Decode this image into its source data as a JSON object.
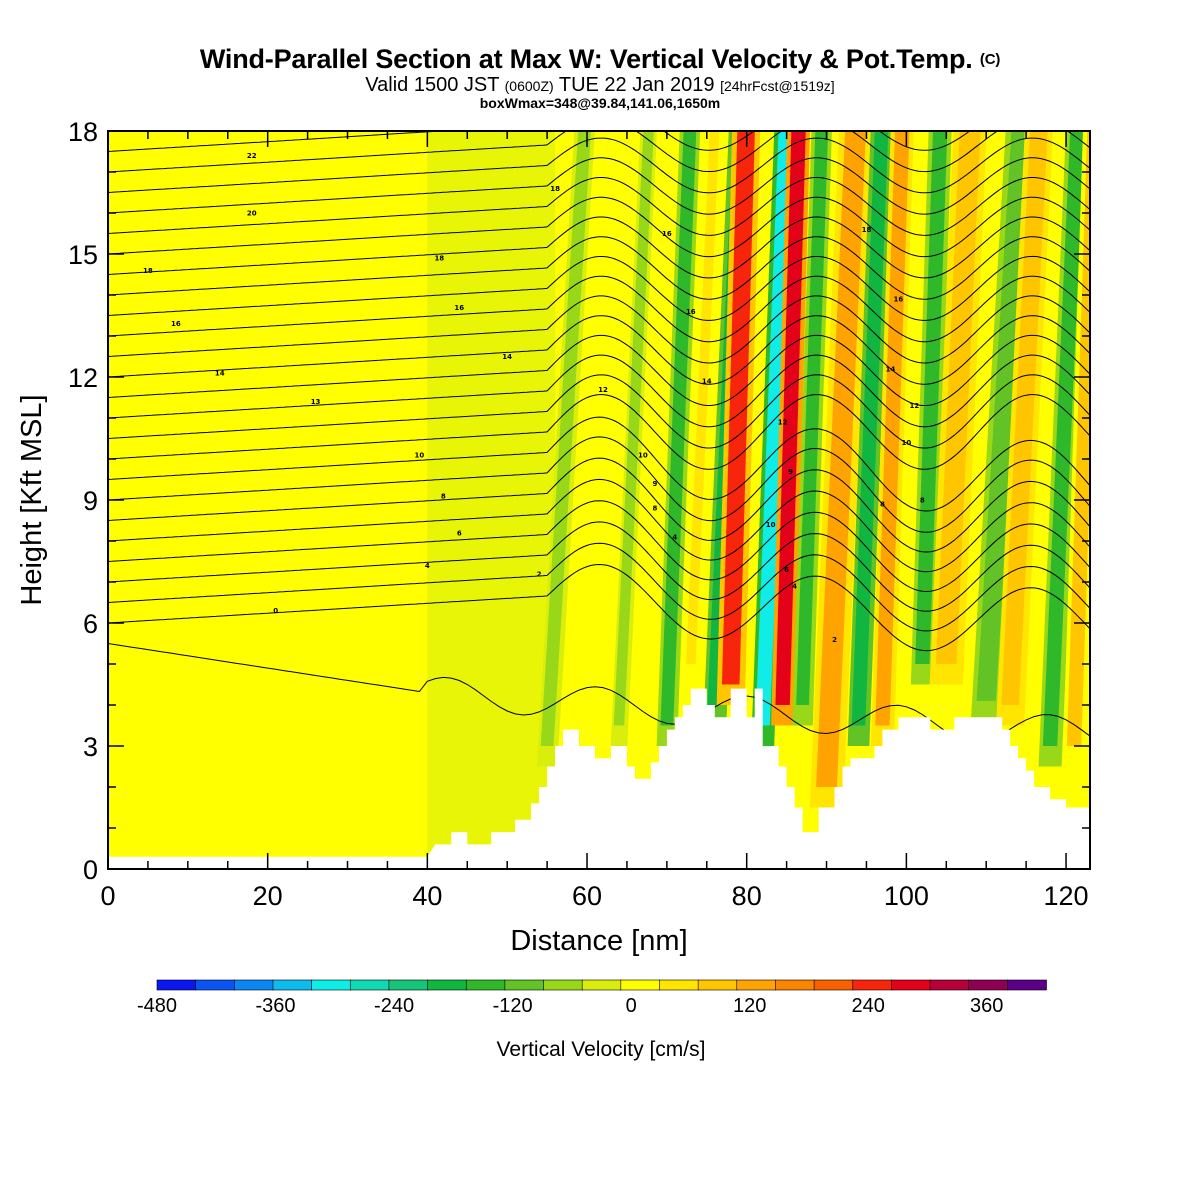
{
  "title": {
    "main": "Wind-Parallel Section at Max W: Vertical Velocity & Pot.Temp.",
    "main_suffix": "(C)",
    "valid_prefix": "Valid 1500 JST",
    "valid_zone": "(0600Z)",
    "valid_date": "TUE 22 Jan 2019",
    "valid_fcst": "[24hrFcst@1519z]",
    "box": "boxWmax=348@39.84,141.06,1650m"
  },
  "chart_data": {
    "type": "heatmap",
    "xlabel": "Distance [nm]",
    "ylabel": "Height [Kft MSL]",
    "xlim": [
      0,
      123
    ],
    "ylim": [
      0,
      18
    ],
    "x_ticks": [
      0,
      20,
      40,
      60,
      80,
      100,
      120
    ],
    "y_ticks": [
      0,
      3,
      6,
      9,
      12,
      15,
      18
    ],
    "colorbar": {
      "title": "Vertical Velocity [cm/s]",
      "min": -480,
      "max": 420,
      "step": 40,
      "tick_values": [
        -480,
        -360,
        -240,
        -120,
        0,
        120,
        240,
        360
      ],
      "colors": [
        "#0a17ee",
        "#0b54f4",
        "#0b86f2",
        "#0dbbee",
        "#10ede6",
        "#12d9b4",
        "#16c579",
        "#10b640",
        "#30b82b",
        "#62c226",
        "#98d818",
        "#d9ee0c",
        "#ffff00",
        "#ffe500",
        "#ffc600",
        "#ffa300",
        "#fb8500",
        "#f76100",
        "#f6250c",
        "#e4021b",
        "#b70039",
        "#8f0055",
        "#5b0086"
      ]
    },
    "terrain_kft": [
      [
        0,
        0.3
      ],
      [
        40,
        0.3
      ],
      [
        41,
        0.6
      ],
      [
        43,
        0.6
      ],
      [
        43,
        0.9
      ],
      [
        45,
        0.9
      ],
      [
        45,
        0.6
      ],
      [
        48,
        0.6
      ],
      [
        48,
        0.9
      ],
      [
        51,
        0.9
      ],
      [
        51,
        1.2
      ],
      [
        53,
        1.2
      ],
      [
        53,
        1.6
      ],
      [
        54,
        1.6
      ],
      [
        54,
        2.0
      ],
      [
        55,
        2.0
      ],
      [
        55,
        2.5
      ],
      [
        56,
        2.5
      ],
      [
        56,
        3.0
      ],
      [
        57,
        3.0
      ],
      [
        57,
        3.4
      ],
      [
        59,
        3.4
      ],
      [
        59,
        3.0
      ],
      [
        61,
        3.0
      ],
      [
        61,
        2.7
      ],
      [
        63,
        2.7
      ],
      [
        63,
        3.0
      ],
      [
        65,
        3.0
      ],
      [
        65,
        2.5
      ],
      [
        66,
        2.5
      ],
      [
        66,
        2.2
      ],
      [
        68,
        2.2
      ],
      [
        68,
        2.6
      ],
      [
        69,
        2.6
      ],
      [
        69,
        3.0
      ],
      [
        70,
        3.0
      ],
      [
        70,
        3.4
      ],
      [
        71,
        3.4
      ],
      [
        71,
        3.7
      ],
      [
        72,
        3.7
      ],
      [
        72,
        4.0
      ],
      [
        73,
        4.0
      ],
      [
        73,
        4.4
      ],
      [
        75,
        4.4
      ],
      [
        75,
        4.0
      ],
      [
        76,
        4.0
      ],
      [
        76,
        3.7
      ],
      [
        78,
        3.7
      ],
      [
        78,
        4.4
      ],
      [
        80,
        4.4
      ],
      [
        80,
        3.7
      ],
      [
        81,
        3.7
      ],
      [
        81,
        4.4
      ],
      [
        82,
        4.4
      ],
      [
        82,
        3.0
      ],
      [
        84,
        3.0
      ],
      [
        84,
        2.5
      ],
      [
        85,
        2.5
      ],
      [
        85,
        2.0
      ],
      [
        86,
        2.0
      ],
      [
        86,
        1.5
      ],
      [
        87,
        1.5
      ],
      [
        87,
        0.9
      ],
      [
        89,
        0.9
      ],
      [
        89,
        1.5
      ],
      [
        91,
        1.5
      ],
      [
        91,
        2.0
      ],
      [
        92,
        2.0
      ],
      [
        92,
        2.5
      ],
      [
        93,
        2.5
      ],
      [
        93,
        2.7
      ],
      [
        96,
        2.7
      ],
      [
        96,
        3.0
      ],
      [
        97,
        3.0
      ],
      [
        97,
        3.4
      ],
      [
        99,
        3.4
      ],
      [
        99,
        3.7
      ],
      [
        103,
        3.7
      ],
      [
        103,
        3.4
      ],
      [
        106,
        3.4
      ],
      [
        106,
        3.7
      ],
      [
        112,
        3.7
      ],
      [
        112,
        3.4
      ],
      [
        113,
        3.4
      ],
      [
        113,
        3.0
      ],
      [
        114,
        3.0
      ],
      [
        114,
        2.7
      ],
      [
        115,
        2.7
      ],
      [
        115,
        2.4
      ],
      [
        116,
        2.4
      ],
      [
        116,
        2.0
      ],
      [
        118,
        2.0
      ],
      [
        118,
        1.7
      ],
      [
        120,
        1.7
      ],
      [
        120,
        1.5
      ],
      [
        123,
        1.5
      ]
    ],
    "velocity_bands": [
      {
        "x": 55,
        "tilt": 0.55,
        "width": 1.6,
        "value": -60,
        "zmin": 2.5,
        "zmax": 18
      },
      {
        "x": 64,
        "tilt": 0.45,
        "width": 1.3,
        "value": -60,
        "zmin": 3.0,
        "zmax": 18
      },
      {
        "x": 70,
        "tilt": 0.35,
        "width": 1.6,
        "value": -140,
        "zmin": 3.0,
        "zmax": 18
      },
      {
        "x": 73,
        "tilt": 0.4,
        "width": 1.2,
        "value": 60,
        "zmin": 4.5,
        "zmax": 18
      },
      {
        "x": 76,
        "tilt": 0.4,
        "width": 1.8,
        "value": -200,
        "zmin": 3.5,
        "zmax": 18
      },
      {
        "x": 78,
        "tilt": 0.25,
        "width": 2.2,
        "value": 240,
        "zmin": 4.0,
        "zmax": 18
      },
      {
        "x": 82,
        "tilt": 0.35,
        "width": 1.8,
        "value": -320,
        "zmin": 3.0,
        "zmax": 18
      },
      {
        "x": 84.5,
        "tilt": 0.25,
        "width": 1.8,
        "value": 300,
        "zmin": 3.5,
        "zmax": 18
      },
      {
        "x": 87,
        "tilt": 0.3,
        "width": 1.6,
        "value": -160,
        "zmin": 3.5,
        "zmax": 18
      },
      {
        "x": 90,
        "tilt": 0.4,
        "width": 2.6,
        "value": 120,
        "zmin": 1.5,
        "zmax": 18
      },
      {
        "x": 94,
        "tilt": 0.35,
        "width": 1.7,
        "value": -200,
        "zmin": 3.0,
        "zmax": 18
      },
      {
        "x": 97,
        "tilt": 0.3,
        "width": 1.8,
        "value": 120,
        "zmin": 3.0,
        "zmax": 18
      },
      {
        "x": 102,
        "tilt": 0.3,
        "width": 1.8,
        "value": -140,
        "zmin": 4.5,
        "zmax": 18
      },
      {
        "x": 105,
        "tilt": 0.4,
        "width": 2.6,
        "value": 100,
        "zmin": 4.5,
        "zmax": 18
      },
      {
        "x": 110,
        "tilt": 0.55,
        "width": 2.4,
        "value": -120,
        "zmin": 3.6,
        "zmax": 18
      },
      {
        "x": 113,
        "tilt": 0.45,
        "width": 2.2,
        "value": 100,
        "zmin": 3.5,
        "zmax": 18
      },
      {
        "x": 118,
        "tilt": 0.4,
        "width": 1.8,
        "value": -140,
        "zmin": 2.5,
        "zmax": 18
      },
      {
        "x": 121,
        "tilt": 0.3,
        "width": 1.8,
        "value": 80,
        "zmin": 2.5,
        "zmax": 18
      }
    ],
    "contour_labels": [
      {
        "text": "22",
        "x": 18,
        "y": 17.4
      },
      {
        "text": "20",
        "x": 18,
        "y": 16.0
      },
      {
        "text": "18",
        "x": 5,
        "y": 14.6
      },
      {
        "text": "18",
        "x": 41.5,
        "y": 14.9
      },
      {
        "text": "18",
        "x": 56,
        "y": 16.6
      },
      {
        "text": "16",
        "x": 8.5,
        "y": 13.3
      },
      {
        "text": "16",
        "x": 44,
        "y": 13.7
      },
      {
        "text": "16",
        "x": 70,
        "y": 15.5
      },
      {
        "text": "16",
        "x": 73,
        "y": 13.6
      },
      {
        "text": "14",
        "x": 14,
        "y": 12.1
      },
      {
        "text": "14",
        "x": 50,
        "y": 12.5
      },
      {
        "text": "14",
        "x": 75,
        "y": 11.9
      },
      {
        "text": "13",
        "x": 26,
        "y": 11.4
      },
      {
        "text": "12",
        "x": 62,
        "y": 11.7
      },
      {
        "text": "12",
        "x": 84.5,
        "y": 10.9
      },
      {
        "text": "10",
        "x": 39,
        "y": 10.1
      },
      {
        "text": "10",
        "x": 67,
        "y": 10.1
      },
      {
        "text": "10",
        "x": 83,
        "y": 8.4
      },
      {
        "text": "10",
        "x": 100,
        "y": 10.4
      },
      {
        "text": "9",
        "x": 68.5,
        "y": 9.4
      },
      {
        "text": "9",
        "x": 85.5,
        "y": 9.7
      },
      {
        "text": "8",
        "x": 42,
        "y": 9.1
      },
      {
        "text": "8",
        "x": 68.5,
        "y": 8.8
      },
      {
        "text": "8",
        "x": 97,
        "y": 8.9
      },
      {
        "text": "6",
        "x": 44,
        "y": 8.2
      },
      {
        "text": "6",
        "x": 85,
        "y": 7.3
      },
      {
        "text": "4",
        "x": 40,
        "y": 7.4
      },
      {
        "text": "4",
        "x": 71,
        "y": 8.1
      },
      {
        "text": "4",
        "x": 86,
        "y": 6.9
      },
      {
        "text": "2",
        "x": 54,
        "y": 7.2
      },
      {
        "text": "2",
        "x": 91,
        "y": 5.6
      },
      {
        "text": "0",
        "x": 21,
        "y": 6.3
      },
      {
        "text": "18",
        "x": 95,
        "y": 15.6
      },
      {
        "text": "16",
        "x": 99,
        "y": 13.9
      },
      {
        "text": "14",
        "x": 98,
        "y": 12.2
      },
      {
        "text": "12",
        "x": 101,
        "y": 11.3
      },
      {
        "text": "8",
        "x": 102,
        "y": 9.0
      }
    ]
  }
}
